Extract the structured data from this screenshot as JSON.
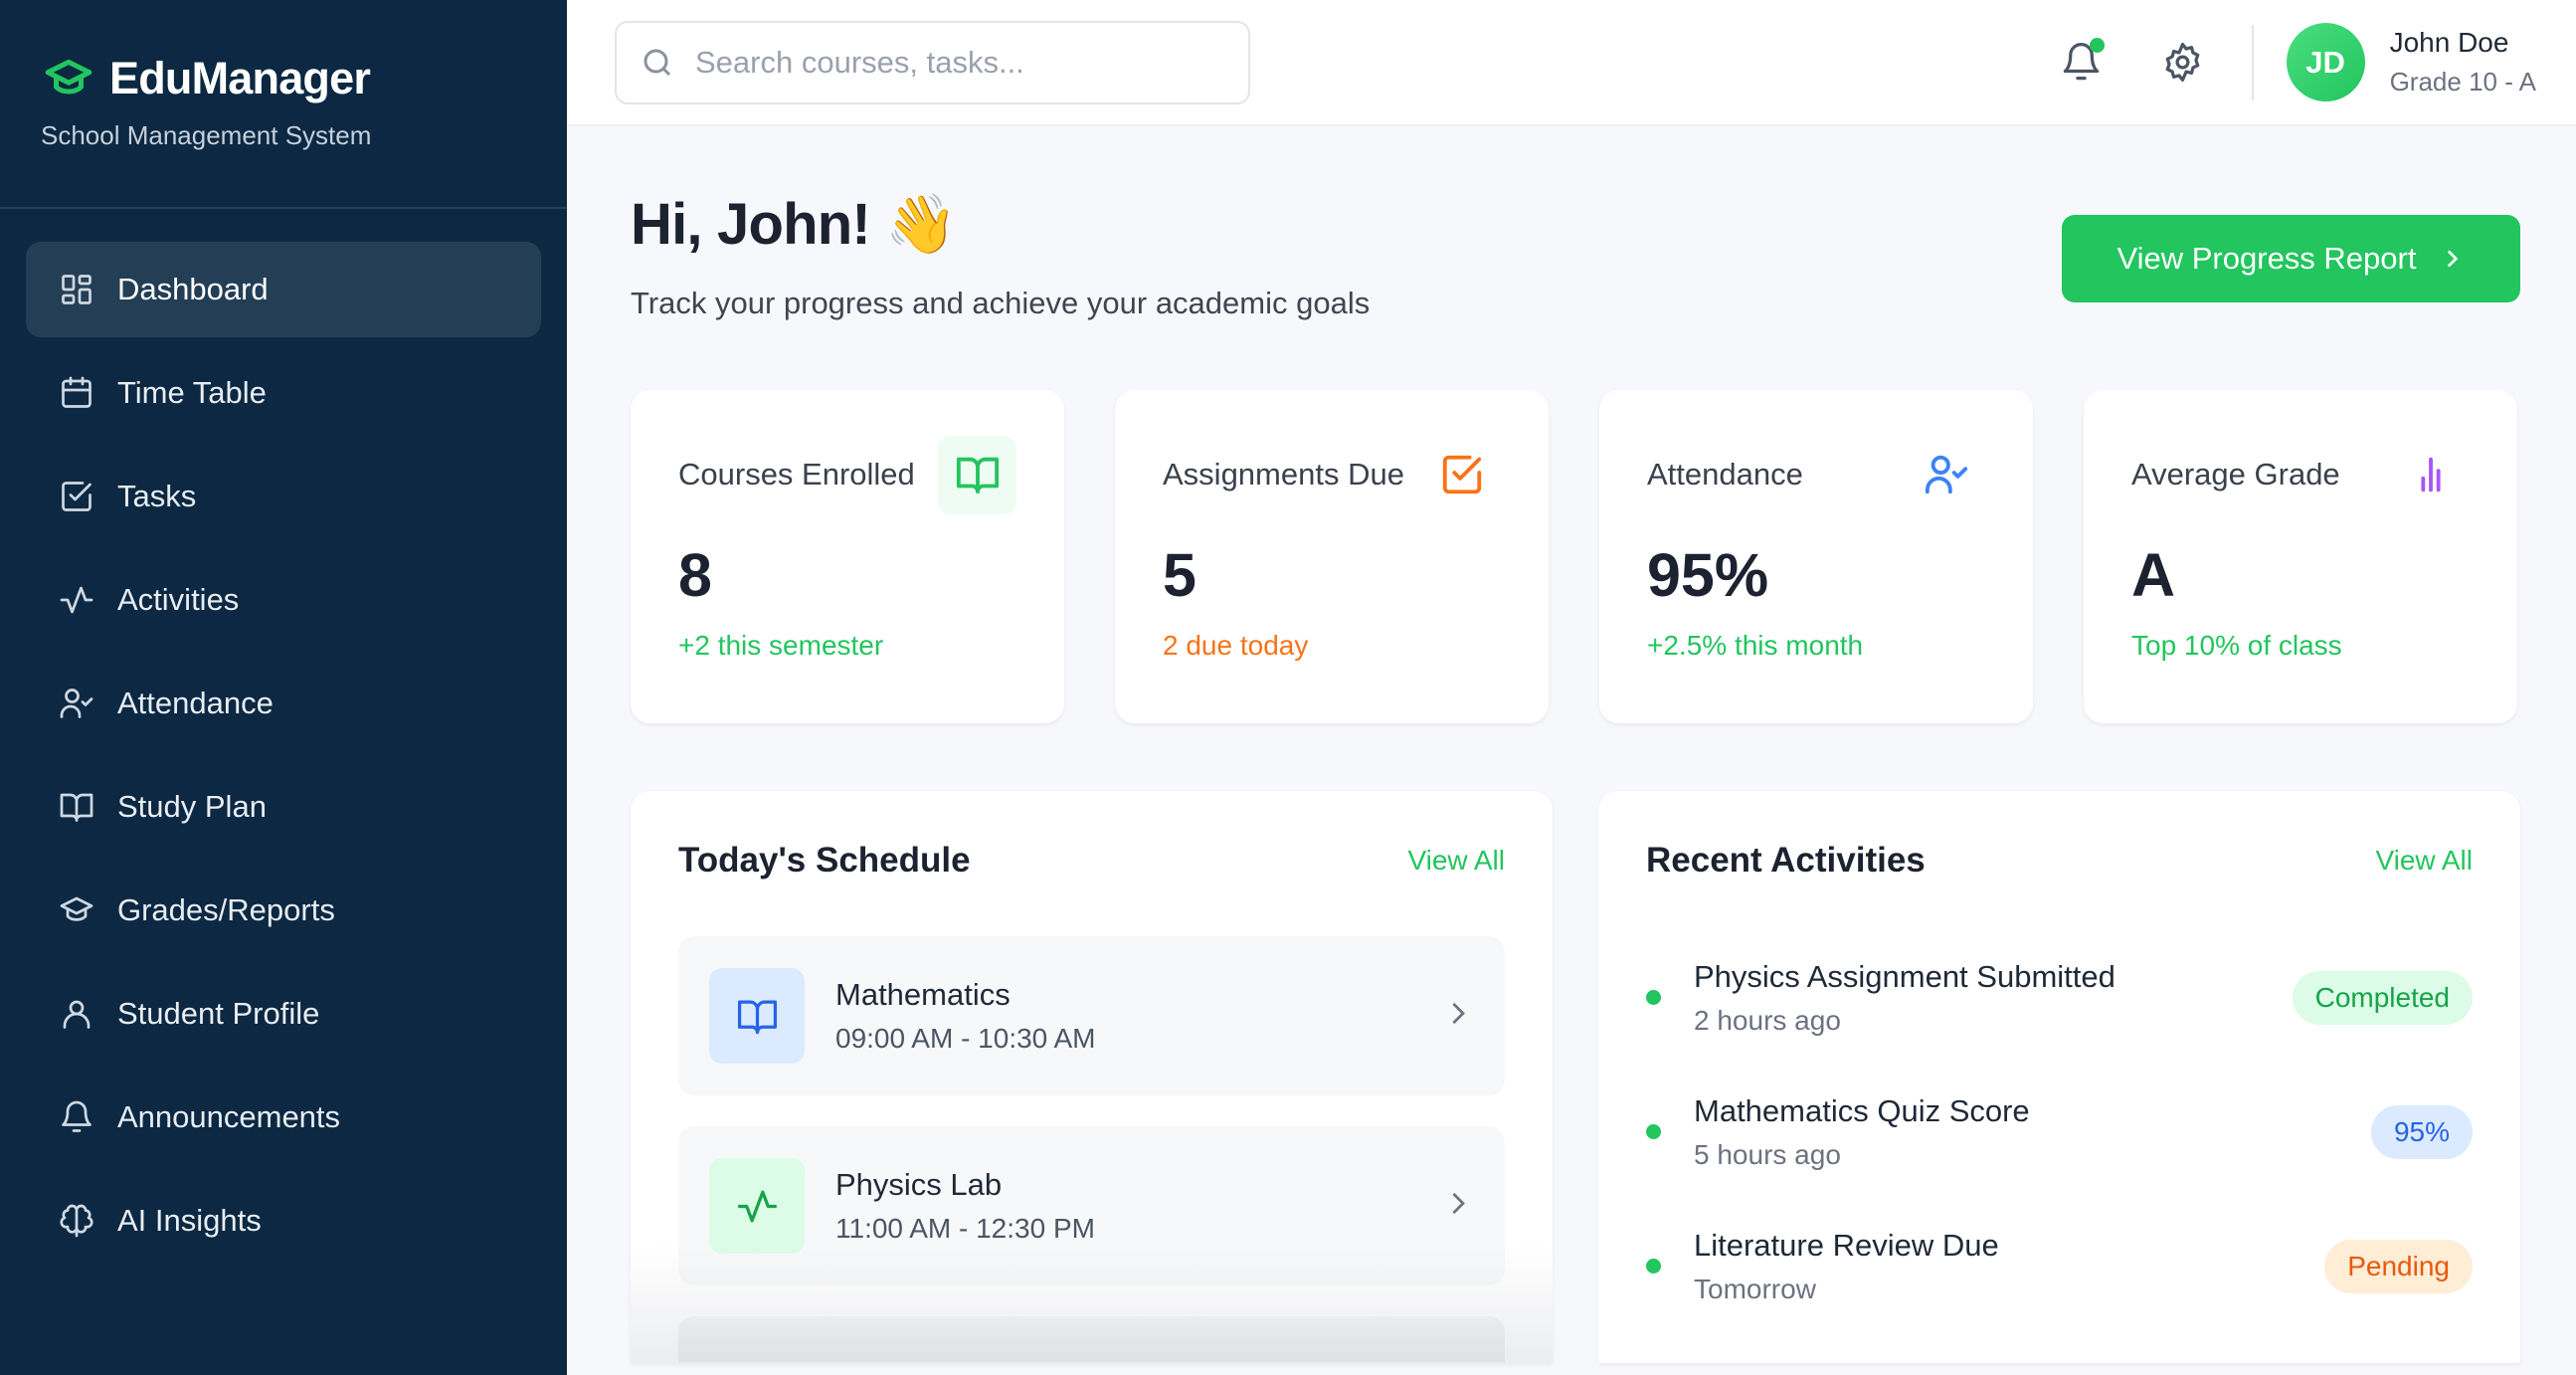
{
  "brand": {
    "title": "EduManager",
    "subtitle": "School Management System",
    "accent": "#22c55e"
  },
  "sidebar": {
    "items": [
      {
        "label": "Dashboard",
        "icon": "dashboard-grid-icon",
        "active": true
      },
      {
        "label": "Time Table",
        "icon": "calendar-icon"
      },
      {
        "label": "Tasks",
        "icon": "checkbox-icon"
      },
      {
        "label": "Activities",
        "icon": "activity-pulse-icon"
      },
      {
        "label": "Attendance",
        "icon": "user-check-icon"
      },
      {
        "label": "Study Plan",
        "icon": "book-open-icon"
      },
      {
        "label": "Grades/Reports",
        "icon": "graduation-cap-icon"
      },
      {
        "label": "Student Profile",
        "icon": "user-icon"
      },
      {
        "label": "Announcements",
        "icon": "bell-icon"
      },
      {
        "label": "AI Insights",
        "icon": "brain-icon"
      }
    ]
  },
  "header": {
    "search_placeholder": "Search courses, tasks...",
    "user": {
      "initials": "JD",
      "name": "John Doe",
      "grade": "Grade 10 - A"
    }
  },
  "hero": {
    "greeting": "Hi, John! 👋",
    "subtitle": "Track your progress and achieve your academic goals",
    "cta": "View Progress Report"
  },
  "stats": [
    {
      "label": "Courses Enrolled",
      "value": "8",
      "note": "+2 this semester",
      "color": "#22c55e"
    },
    {
      "label": "Assignments Due",
      "value": "5",
      "note": "2 due today",
      "color": "#f97316"
    },
    {
      "label": "Attendance",
      "value": "95%",
      "note": "+2.5% this month",
      "color": "#3b82f6"
    },
    {
      "label": "Average Grade",
      "value": "A",
      "note": "Top 10% of class",
      "color": "#a855f7"
    }
  ],
  "schedule": {
    "title": "Today's Schedule",
    "view_all": "View All",
    "items": [
      {
        "name": "Mathematics",
        "time": "09:00 AM - 10:30 AM",
        "icon": "book-open-icon"
      },
      {
        "name": "Physics Lab",
        "time": "11:00 AM - 12:30 PM",
        "icon": "activity-pulse-icon"
      }
    ]
  },
  "activities": {
    "title": "Recent Activities",
    "view_all": "View All",
    "items": [
      {
        "title": "Physics Assignment Submitted",
        "time": "2 hours ago",
        "badge": "Completed",
        "badge_color": "#16a34a",
        "badge_bg": "#dcfce7"
      },
      {
        "title": "Mathematics Quiz Score",
        "time": "5 hours ago",
        "badge": "95%",
        "badge_color": "#2563eb",
        "badge_bg": "#dbeafe"
      },
      {
        "title": "Literature Review Due",
        "time": "Tomorrow",
        "badge": "Pending",
        "badge_color": "#ea580c",
        "badge_bg": "#ffedd5"
      }
    ]
  }
}
